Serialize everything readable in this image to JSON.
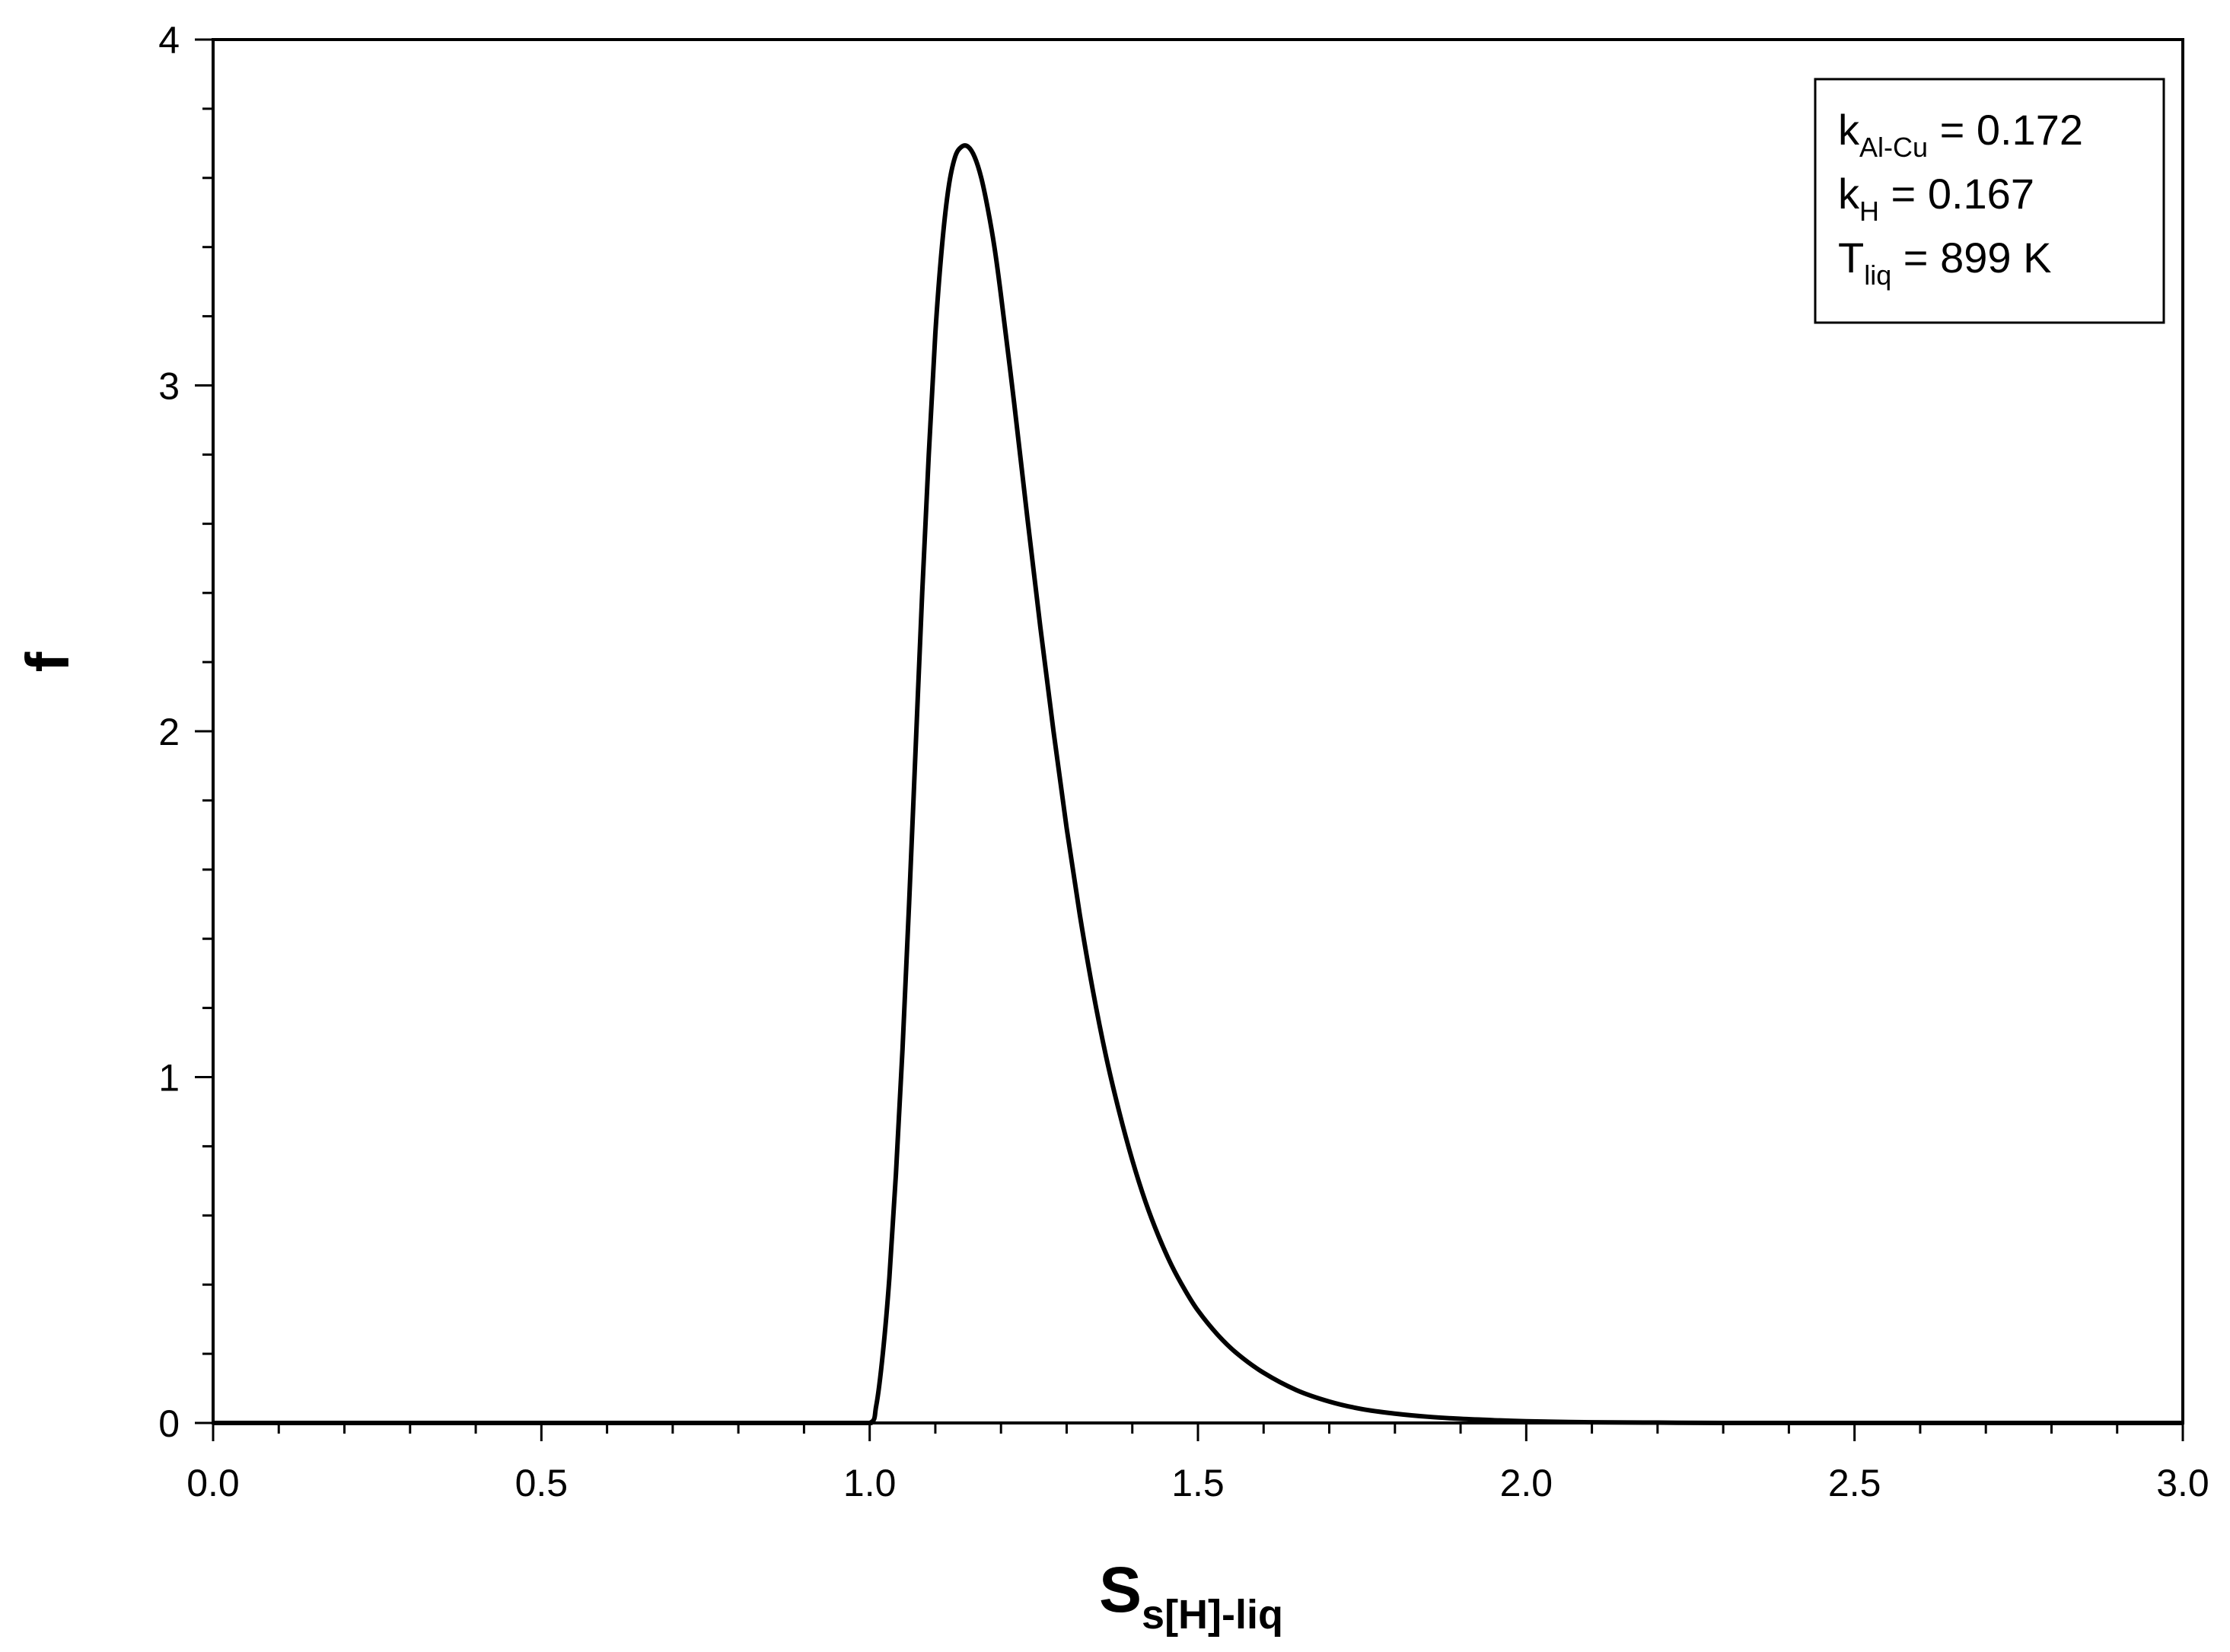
{
  "chart_data": {
    "type": "line",
    "title": "",
    "xlabel": {
      "main": "S",
      "sub": "s[H]-liq"
    },
    "ylabel": "f",
    "xlim": [
      0.0,
      3.0
    ],
    "ylim": [
      0,
      4
    ],
    "x_ticks": [
      "0.0",
      "0.5",
      "1.0",
      "1.5",
      "2.0",
      "2.5",
      "3.0"
    ],
    "y_ticks": [
      "0",
      "1",
      "2",
      "3",
      "4"
    ],
    "x_minor_step": 0.1,
    "y_minor_step": 0.2,
    "grid": false,
    "legend_position": "top-right",
    "legend_box": [
      {
        "main": "k",
        "sub": "Al-Cu",
        "value": " = 0.172"
      },
      {
        "main": "k",
        "sub": "H",
        "value": " = 0.167"
      },
      {
        "main": "T",
        "sub": "liq",
        "value": " = 899 K"
      }
    ],
    "series": [
      {
        "color": "#000000",
        "x": [
          0.0,
          0.5,
          0.95,
          1.0,
          1.01,
          1.02,
          1.03,
          1.04,
          1.05,
          1.06,
          1.07,
          1.08,
          1.09,
          1.1,
          1.11,
          1.12,
          1.13,
          1.14,
          1.15,
          1.16,
          1.17,
          1.18,
          1.19,
          1.2,
          1.22,
          1.24,
          1.26,
          1.28,
          1.3,
          1.32,
          1.34,
          1.36,
          1.38,
          1.4,
          1.42,
          1.44,
          1.46,
          1.48,
          1.5,
          1.53,
          1.56,
          1.6,
          1.65,
          1.7,
          1.75,
          1.8,
          1.85,
          1.9,
          1.95,
          2.0,
          2.1,
          2.2,
          2.3,
          2.5,
          2.75,
          3.0
        ],
        "y": [
          0,
          0,
          0,
          0.0,
          0.05,
          0.2,
          0.42,
          0.72,
          1.08,
          1.5,
          1.95,
          2.4,
          2.8,
          3.15,
          3.4,
          3.57,
          3.66,
          3.69,
          3.69,
          3.66,
          3.6,
          3.51,
          3.4,
          3.26,
          2.95,
          2.62,
          2.3,
          2.0,
          1.72,
          1.47,
          1.25,
          1.06,
          0.9,
          0.76,
          0.64,
          0.54,
          0.455,
          0.385,
          0.325,
          0.255,
          0.2,
          0.145,
          0.095,
          0.062,
          0.04,
          0.027,
          0.018,
          0.012,
          0.008,
          0.005,
          0.002,
          0.001,
          0.0,
          0,
          0,
          0
        ]
      }
    ]
  }
}
